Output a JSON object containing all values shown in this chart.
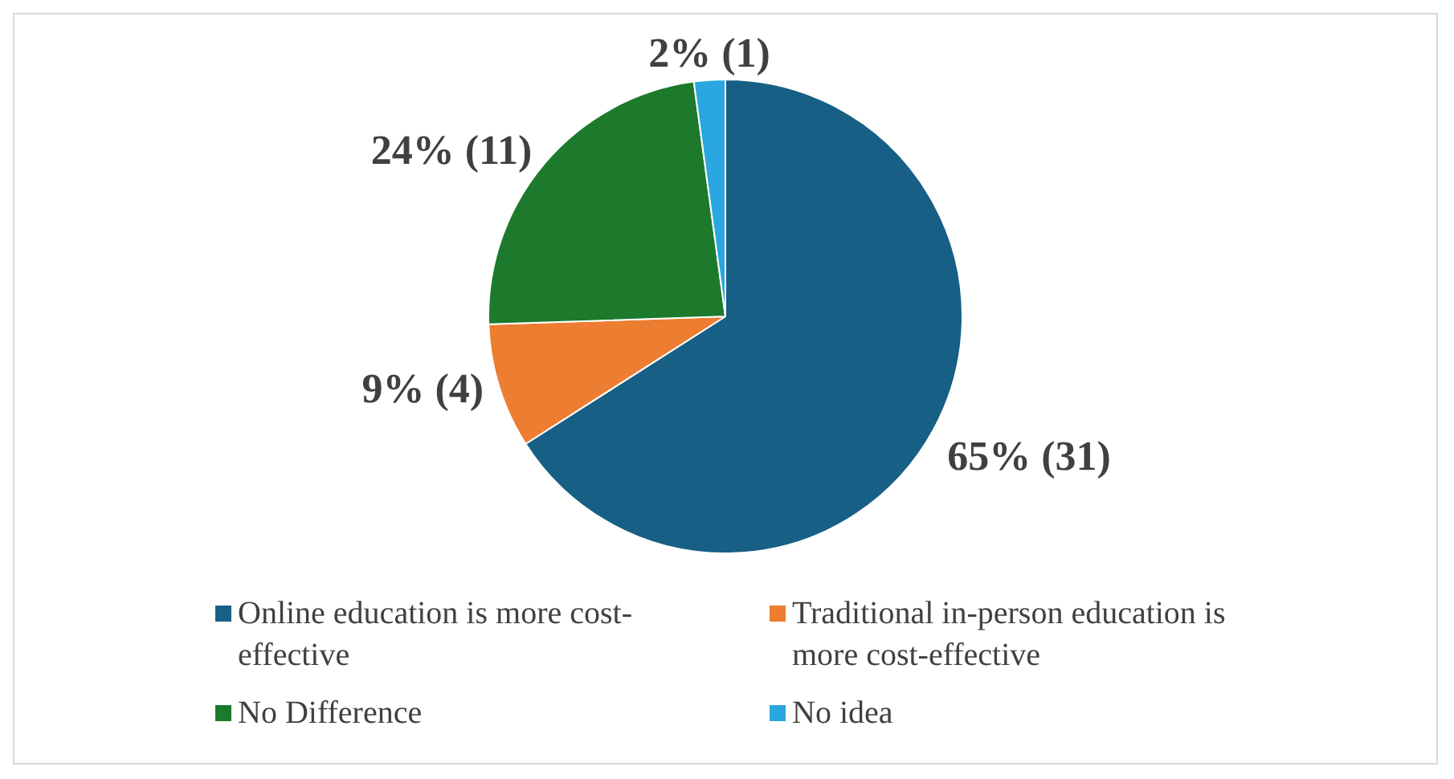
{
  "chart_data": {
    "type": "pie",
    "categories": [
      "Online education is more cost-effective",
      "Traditional in-person education is more cost-effective",
      "No Difference",
      "No idea"
    ],
    "values": [
      31,
      4,
      11,
      1
    ],
    "value_labels": [
      "65% (31)",
      "9% (4)",
      "24% (11)",
      "2% (1)"
    ],
    "colors": [
      "#175f85",
      "#ed7d31",
      "#1d7a2c",
      "#2aa7e0"
    ],
    "legend": "bottom"
  }
}
